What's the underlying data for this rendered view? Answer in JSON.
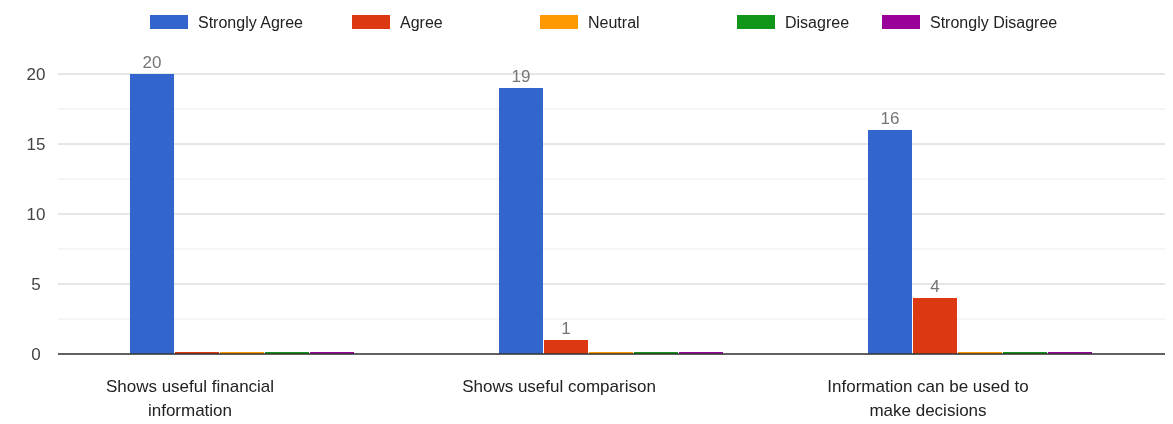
{
  "chart_data": {
    "type": "bar",
    "categories": [
      "Shows useful financial information",
      "Shows useful comparison",
      "Information can be used to make decisions"
    ],
    "series": [
      {
        "name": "Strongly Agree",
        "color": "#3366cc",
        "values": [
          20,
          19,
          16
        ],
        "value_labels": [
          "20",
          "19",
          "16"
        ]
      },
      {
        "name": "Agree",
        "color": "#dc3912",
        "values": [
          0,
          1,
          4
        ],
        "value_labels": [
          null,
          "1",
          "4"
        ]
      },
      {
        "name": "Neutral",
        "color": "#ff9900",
        "values": [
          0,
          0,
          0
        ],
        "value_labels": [
          null,
          null,
          null
        ]
      },
      {
        "name": "Disagree",
        "color": "#109618",
        "values": [
          0,
          0,
          0
        ],
        "value_labels": [
          null,
          null,
          null
        ]
      },
      {
        "name": "Strongly Disagree",
        "color": "#990099",
        "values": [
          0,
          0,
          0
        ],
        "value_labels": [
          null,
          null,
          null
        ]
      }
    ],
    "ylim": [
      0,
      20
    ],
    "yticks": [
      0,
      {
        "value": 2.5,
        "label": null
      },
      5,
      {
        "value": 7.5,
        "label": null
      },
      10,
      {
        "value": 12.5,
        "label": null
      },
      15,
      {
        "value": 17.5,
        "label": null
      },
      20
    ],
    "grid": "y",
    "legend": "top"
  }
}
